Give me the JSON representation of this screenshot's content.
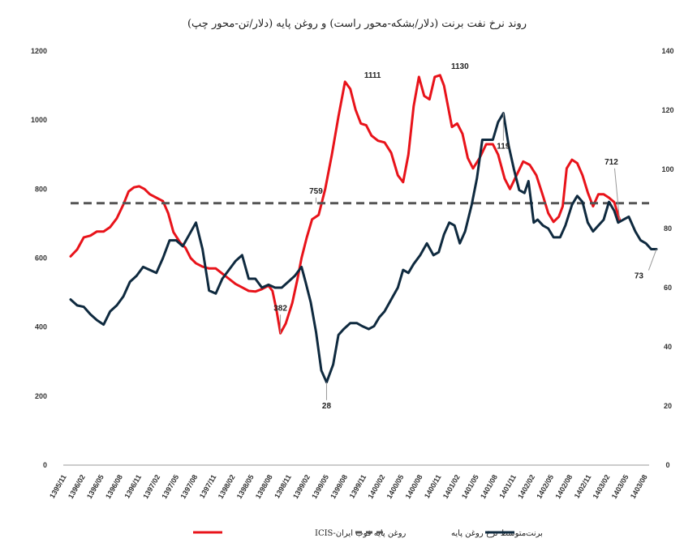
{
  "chart_data": {
    "type": "line",
    "title": "روند نرخ نفت برنت (دلار/بشکه-محور راست) و روغن پایه (دلار/تن-محور چپ)",
    "y_left": {
      "min": 0,
      "max": 1200,
      "ticks": [
        "0",
        "200",
        "400",
        "600",
        "800",
        "1000",
        "1200"
      ]
    },
    "y_right": {
      "min": 0,
      "max": 140,
      "ticks": [
        "0",
        "20",
        "40",
        "60",
        "80",
        "100",
        "120",
        "140"
      ]
    },
    "x_tick_labels": [
      "1395/11",
      "1396/02",
      "1396/05",
      "1396/08",
      "1396/11",
      "1397/02",
      "1397/05",
      "1397/08",
      "1397/11",
      "1398/02",
      "1398/05",
      "1398/08",
      "1398/11",
      "1399/02",
      "1399/05",
      "1399/08",
      "1399/11",
      "1400/02",
      "1400/05",
      "1400/08",
      "1400/11",
      "1401/02",
      "1401/05",
      "1401/08",
      "1401/11",
      "1402/02",
      "1402/05",
      "1402/08",
      "1402/11",
      "1403/02",
      "1403/05",
      "1403/08"
    ],
    "x_count": 32,
    "series": [
      {
        "name": "روغن پایه فوب ایران-ICIS",
        "axis": "left",
        "color": "#e8131a",
        "points": [
          [
            0,
            605
          ],
          [
            0.5,
            625
          ],
          [
            1,
            660
          ],
          [
            1.5,
            665
          ],
          [
            2,
            677
          ],
          [
            2.5,
            677
          ],
          [
            3,
            690
          ],
          [
            3.5,
            715
          ],
          [
            4,
            755
          ],
          [
            4.4,
            793
          ],
          [
            4.8,
            805
          ],
          [
            5.2,
            808
          ],
          [
            5.6,
            800
          ],
          [
            6,
            785
          ],
          [
            6.5,
            775
          ],
          [
            7,
            765
          ],
          [
            7.4,
            730
          ],
          [
            7.8,
            675
          ],
          [
            8.3,
            645
          ],
          [
            8.7,
            630
          ],
          [
            9.1,
            600
          ],
          [
            9.5,
            585
          ],
          [
            10,
            575
          ],
          [
            10.5,
            570
          ],
          [
            11,
            570
          ],
          [
            11.5,
            555
          ],
          [
            12,
            540
          ],
          [
            12.5,
            525
          ],
          [
            13,
            515
          ],
          [
            13.5,
            505
          ],
          [
            14,
            503
          ],
          [
            14.5,
            510
          ],
          [
            15,
            520
          ],
          [
            15.3,
            505
          ],
          [
            15.6,
            450
          ],
          [
            15.9,
            382
          ],
          [
            16.3,
            410
          ],
          [
            16.8,
            470
          ],
          [
            17.2,
            540
          ],
          [
            17.5,
            600
          ],
          [
            17.9,
            660
          ],
          [
            18.3,
            712
          ],
          [
            18.8,
            725
          ],
          [
            19.3,
            800
          ],
          [
            19.8,
            900
          ],
          [
            20.3,
            1010
          ],
          [
            20.8,
            1111
          ],
          [
            21.2,
            1090
          ],
          [
            21.6,
            1030
          ],
          [
            22,
            990
          ],
          [
            22.4,
            985
          ],
          [
            22.8,
            955
          ],
          [
            23.3,
            940
          ],
          [
            23.8,
            935
          ],
          [
            24.3,
            905
          ],
          [
            24.8,
            840
          ],
          [
            25.2,
            820
          ],
          [
            25.6,
            900
          ],
          [
            26,
            1040
          ],
          [
            26.4,
            1125
          ],
          [
            26.8,
            1070
          ],
          [
            27.2,
            1060
          ],
          [
            27.6,
            1125
          ],
          [
            28,
            1130
          ],
          [
            28.3,
            1100
          ],
          [
            28.6,
            1040
          ],
          [
            28.9,
            980
          ],
          [
            29.3,
            990
          ],
          [
            29.7,
            960
          ],
          [
            30.1,
            890
          ],
          [
            30.5,
            860
          ],
          [
            31,
            890
          ],
          [
            31.5,
            930
          ],
          [
            32,
            930
          ],
          [
            32.4,
            900
          ],
          [
            32.9,
            830
          ],
          [
            33.3,
            800
          ],
          [
            33.8,
            840
          ],
          [
            34.3,
            880
          ],
          [
            34.8,
            870
          ],
          [
            35.3,
            840
          ],
          [
            35.8,
            780
          ],
          [
            36.2,
            730
          ],
          [
            36.6,
            705
          ],
          [
            37,
            720
          ],
          [
            37.3,
            750
          ],
          [
            37.6,
            860
          ],
          [
            38,
            885
          ],
          [
            38.4,
            875
          ],
          [
            38.8,
            840
          ],
          [
            39.2,
            790
          ],
          [
            39.6,
            750
          ],
          [
            40,
            785
          ],
          [
            40.4,
            785
          ],
          [
            40.8,
            775
          ],
          [
            41.2,
            762
          ],
          [
            41.6,
            712
          ]
        ]
      },
      {
        "name": "متوسط نرخ روغن پایه",
        "axis": "left",
        "color": "#555555",
        "dashed": true,
        "value": 759
      },
      {
        "name": "برنت",
        "axis": "right",
        "color": "#0f2a3f",
        "points": [
          [
            0,
            56
          ],
          [
            0.5,
            54
          ],
          [
            1,
            53.5
          ],
          [
            1.5,
            51
          ],
          [
            2,
            49
          ],
          [
            2.5,
            47.5
          ],
          [
            3,
            52
          ],
          [
            3.5,
            54
          ],
          [
            4,
            57
          ],
          [
            4.5,
            62
          ],
          [
            5,
            64
          ],
          [
            5.5,
            67
          ],
          [
            6,
            66
          ],
          [
            6.5,
            65
          ],
          [
            7,
            70
          ],
          [
            7.5,
            76
          ],
          [
            8,
            76
          ],
          [
            8.5,
            74
          ],
          [
            9,
            78
          ],
          [
            9.5,
            82
          ],
          [
            10,
            73
          ],
          [
            10.5,
            59
          ],
          [
            11,
            58
          ],
          [
            11.5,
            63
          ],
          [
            12,
            66
          ],
          [
            12.5,
            69
          ],
          [
            13,
            71
          ],
          [
            13.5,
            63
          ],
          [
            14,
            63
          ],
          [
            14.5,
            60
          ],
          [
            15,
            61
          ],
          [
            15.5,
            60
          ],
          [
            16,
            60
          ],
          [
            16.5,
            62
          ],
          [
            17,
            64
          ],
          [
            17.5,
            67
          ],
          [
            17.8,
            62
          ],
          [
            18.2,
            55
          ],
          [
            18.6,
            45
          ],
          [
            19,
            32
          ],
          [
            19.4,
            28
          ],
          [
            19.9,
            34
          ],
          [
            20.3,
            44
          ],
          [
            20.7,
            46
          ],
          [
            21.2,
            48
          ],
          [
            21.7,
            48
          ],
          [
            22.1,
            47
          ],
          [
            22.6,
            46
          ],
          [
            23,
            47
          ],
          [
            23.4,
            50
          ],
          [
            23.8,
            52
          ],
          [
            24.3,
            56
          ],
          [
            24.8,
            60
          ],
          [
            25.2,
            66
          ],
          [
            25.6,
            65
          ],
          [
            26,
            68
          ],
          [
            26.5,
            71
          ],
          [
            27,
            75
          ],
          [
            27.5,
            71
          ],
          [
            27.9,
            72
          ],
          [
            28.3,
            78
          ],
          [
            28.7,
            82
          ],
          [
            29.1,
            81
          ],
          [
            29.5,
            75
          ],
          [
            29.9,
            79
          ],
          [
            30.4,
            88
          ],
          [
            30.8,
            97
          ],
          [
            31.2,
            110
          ],
          [
            31.6,
            110
          ],
          [
            32,
            110
          ],
          [
            32.4,
            116
          ],
          [
            32.8,
            119
          ],
          [
            33.2,
            108
          ],
          [
            33.6,
            100
          ],
          [
            34,
            93
          ],
          [
            34.4,
            92
          ],
          [
            34.7,
            96
          ],
          [
            35.1,
            82
          ],
          [
            35.4,
            83
          ],
          [
            35.8,
            81
          ],
          [
            36.2,
            80
          ],
          [
            36.6,
            77
          ],
          [
            37.1,
            77
          ],
          [
            37.5,
            81
          ],
          [
            38,
            88
          ],
          [
            38.4,
            91
          ],
          [
            38.8,
            89
          ],
          [
            39.2,
            82
          ],
          [
            39.6,
            79
          ],
          [
            40,
            81
          ],
          [
            40.4,
            83
          ],
          [
            40.8,
            89
          ],
          [
            41.2,
            86
          ],
          [
            41.5,
            82
          ],
          [
            41.9,
            83
          ],
          [
            42.3,
            84
          ],
          [
            42.8,
            79
          ],
          [
            43.2,
            76
          ],
          [
            43.6,
            75
          ],
          [
            44,
            73
          ],
          [
            44.4,
            73
          ]
        ]
      }
    ],
    "annotations": [
      {
        "text": "1111",
        "series": "left",
        "at": [
          20.9,
          1111
        ]
      },
      {
        "text": "1130",
        "series": "left",
        "at": [
          28.1,
          1130
        ]
      },
      {
        "text": "759",
        "series": "left",
        "at": [
          18.6,
          759
        ]
      },
      {
        "text": "382",
        "series": "left",
        "at": [
          15.9,
          382
        ]
      },
      {
        "text": "712",
        "series": "left",
        "at": [
          41.6,
          712
        ]
      },
      {
        "text": "119",
        "series": "right",
        "at": [
          32.8,
          119
        ]
      },
      {
        "text": "28",
        "series": "right",
        "at": [
          19.4,
          28
        ]
      },
      {
        "text": "73",
        "series": "right",
        "at": [
          44.4,
          73
        ]
      }
    ],
    "legend": [
      {
        "label": "روغن پایه فوب ایران-ICIS",
        "color": "#e8131a",
        "dashed": false
      },
      {
        "label": "متوسط نرخ روغن پایه",
        "color": "#555555",
        "dashed": true
      },
      {
        "label": "برنت",
        "color": "#0f2a3f",
        "dashed": false
      }
    ],
    "legend_placement": "bottom",
    "grid": false
  }
}
